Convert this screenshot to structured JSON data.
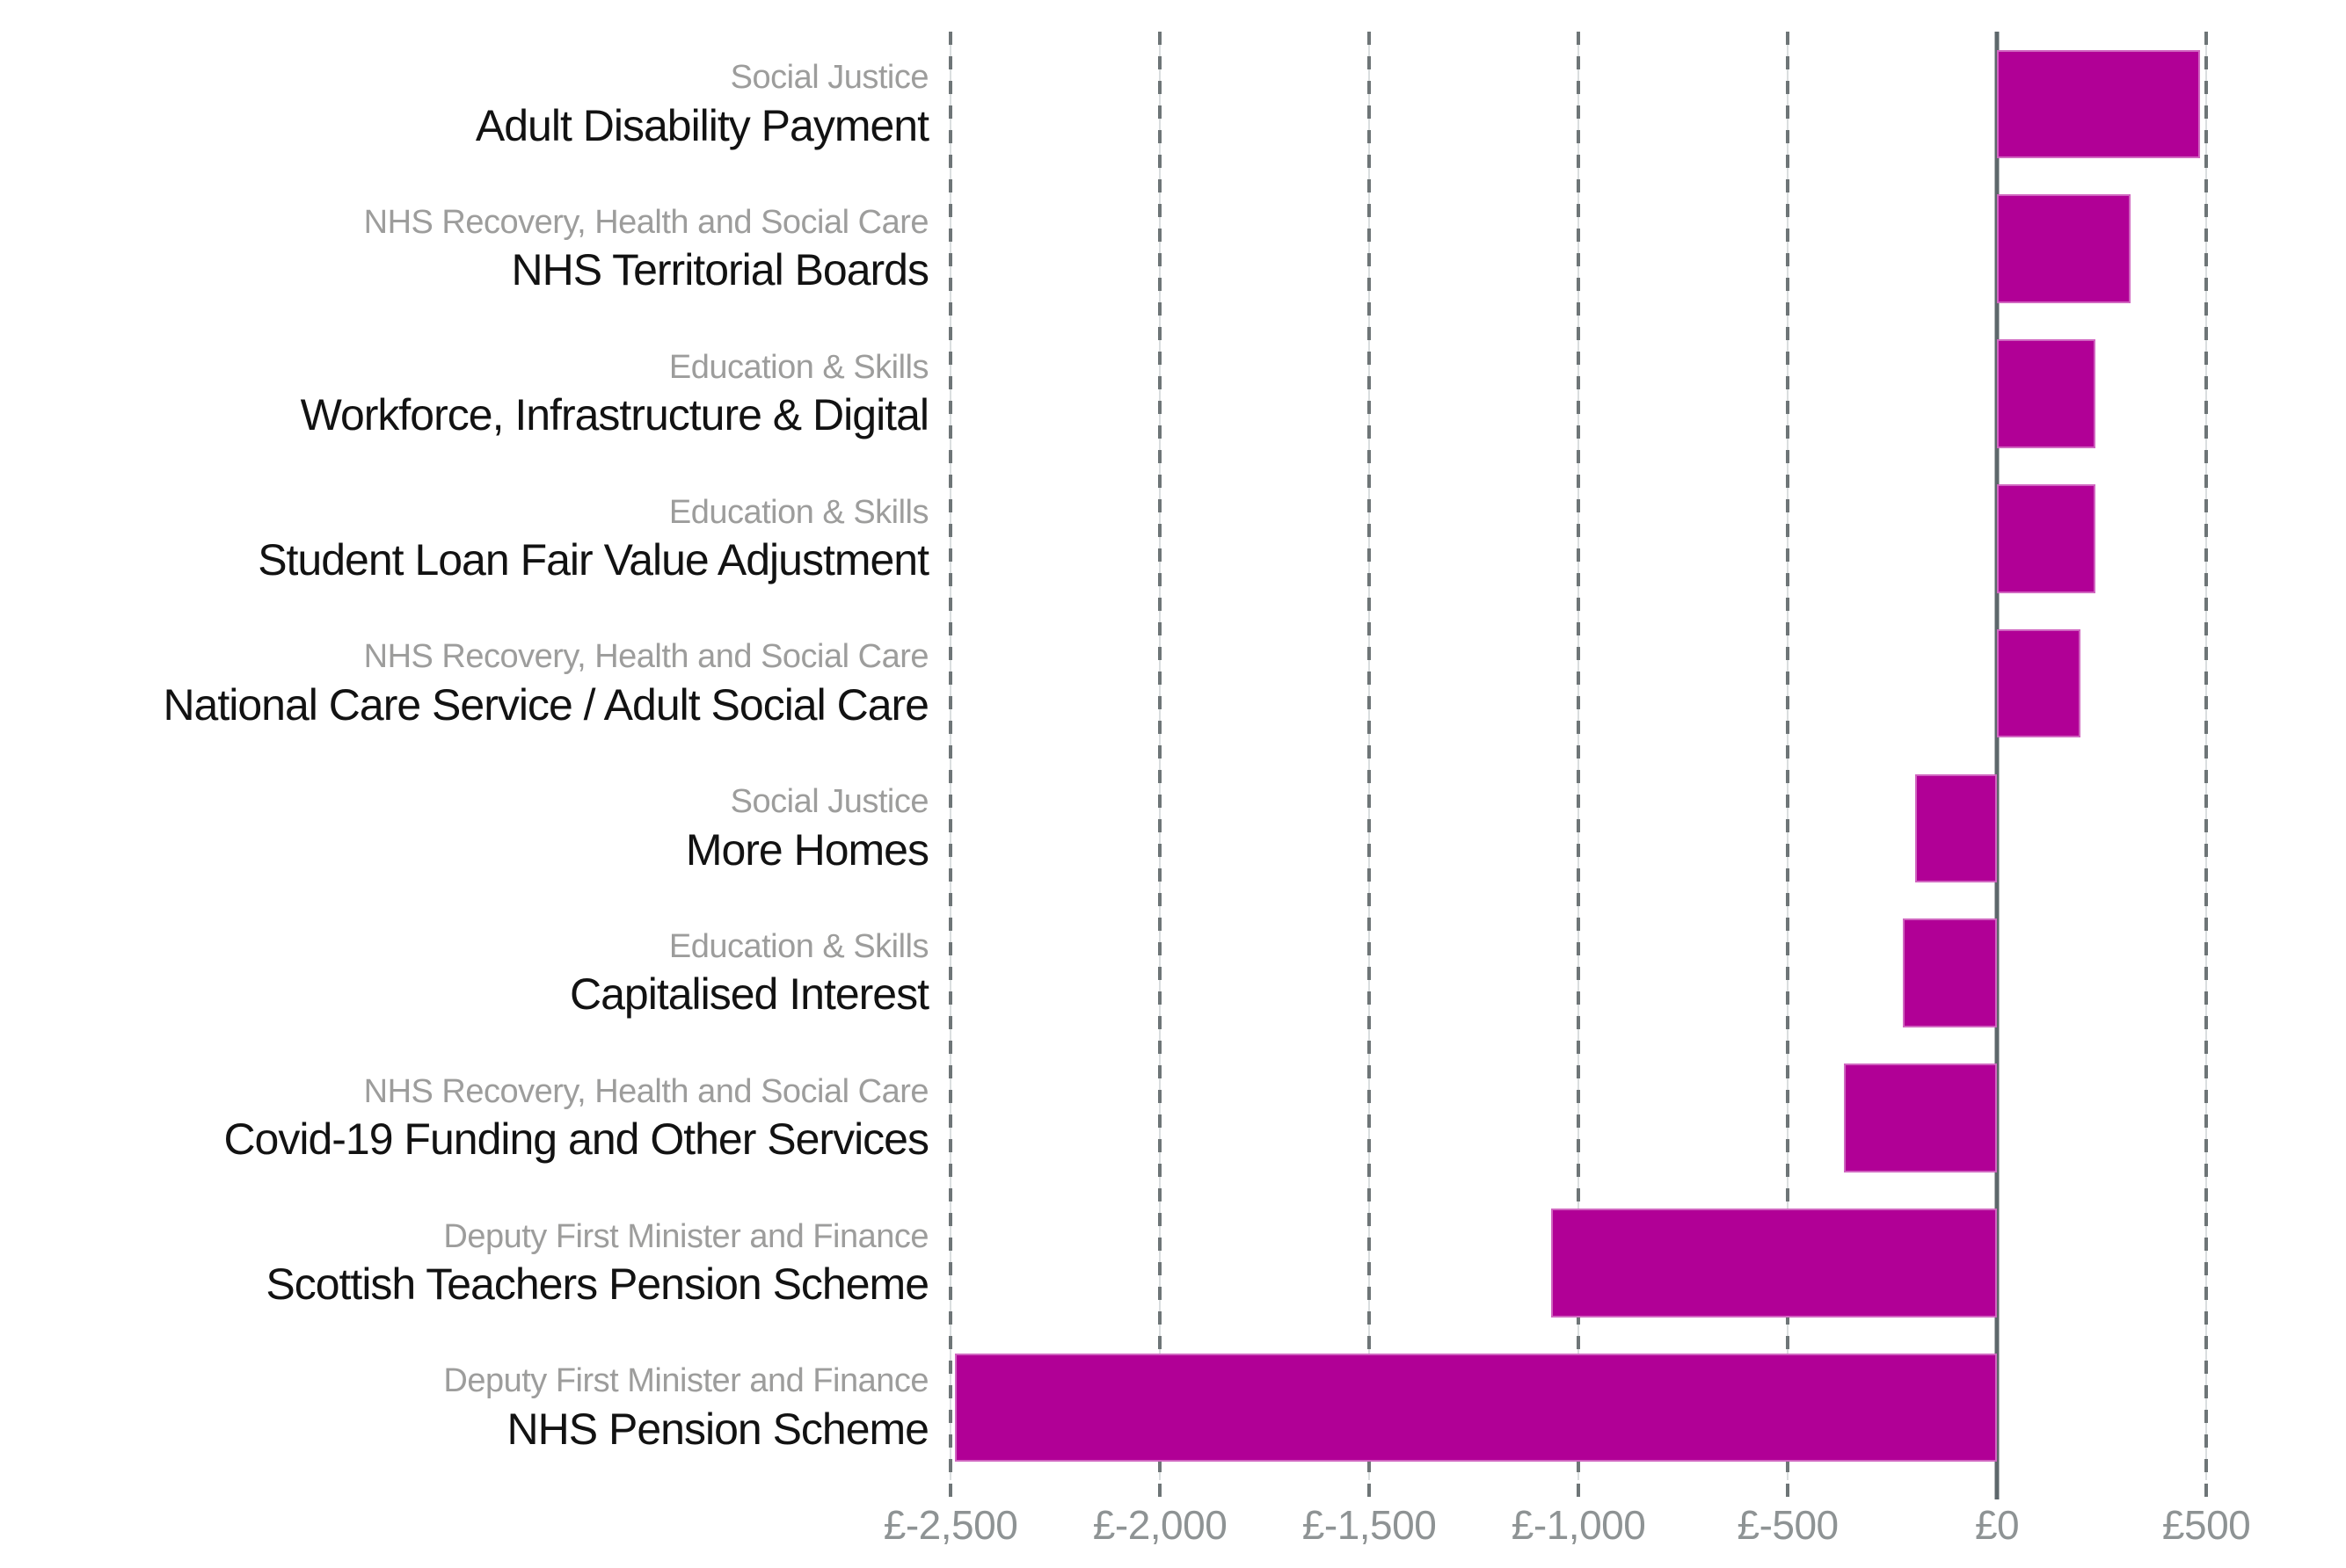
{
  "colors": {
    "bar": "#b10096",
    "zero_line": "#5d676b",
    "grid_dash": "#6e7577",
    "grid_faint_line": "#dadedf",
    "x_tick_label": "#8e9394",
    "group_label": "#9d9d9c",
    "category_label": "#121212",
    "background": "#ffffff"
  },
  "chart_data": {
    "type": "bar",
    "orientation": "horizontal",
    "title": "",
    "legend": "none",
    "grid": "dashed vertical gridlines at each x tick",
    "zero_line": true,
    "bar_color": "#b10096",
    "categories": [
      "Adult Disability Payment",
      "NHS Territorial Boards",
      "Workforce, Infrastructure & Digital",
      "Student Loan Fair Value Adjustment",
      "National Care Service / Adult Social Care",
      "More Homes",
      "Capitalised Interest",
      "Covid-19 Funding and Other Services",
      "Scottish Teachers Pension Scheme",
      "NHS Pension Scheme"
    ],
    "category_groups": [
      "Social Justice",
      "NHS Recovery, Health and Social Care",
      "Education & Skills",
      "Education & Skills",
      "NHS Recovery, Health and Social Care",
      "Social Justice",
      "Education & Skills",
      "NHS Recovery, Health and Social Care",
      "Deputy First Minister and Finance",
      "Deputy First Minister and Finance"
    ],
    "values": [
      485,
      320,
      235,
      235,
      200,
      -195,
      -225,
      -365,
      -1065,
      -2490
    ],
    "x_tick_labels": [
      "£-2,500",
      "£-2,000",
      "£-1,500",
      "£-1,000",
      "£-500",
      "£0",
      "£500"
    ],
    "x_tick_values": [
      -2500,
      -2000,
      -1500,
      -1000,
      -500,
      0,
      500
    ],
    "xlim": [
      -2540,
      712
    ]
  }
}
